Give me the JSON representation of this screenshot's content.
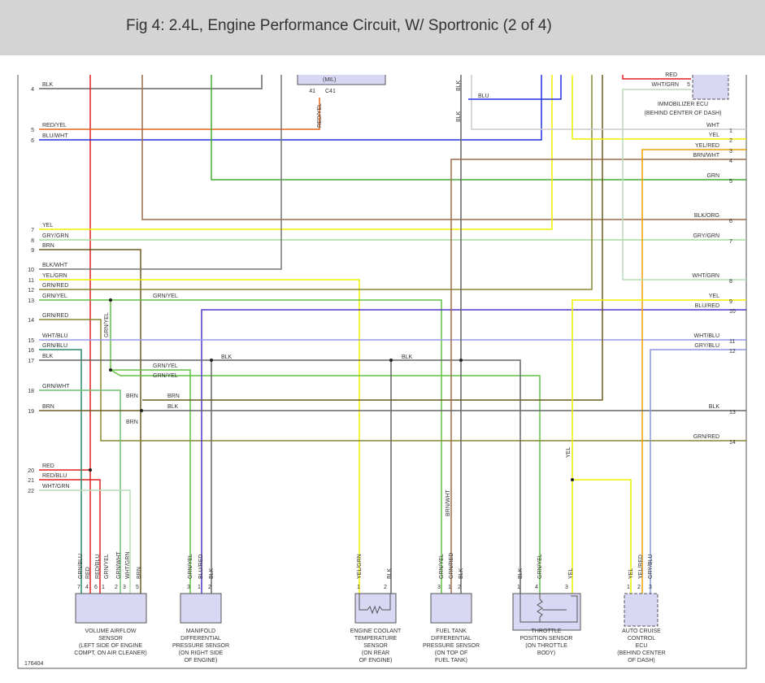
{
  "header": {
    "title": "Fig 4: 2.4L, Engine Performance Circuit, W/ Sportronic (2 of 4)"
  },
  "left_pins": [
    {
      "pin": "4",
      "label": "BLK"
    },
    {
      "pin": "5",
      "label": "RED/YEL"
    },
    {
      "pin": "6",
      "label": "BLU/WHT"
    },
    {
      "pin": "7",
      "label": "YEL"
    },
    {
      "pin": "8",
      "label": "GRY/GRN"
    },
    {
      "pin": "9",
      "label": "BRN"
    },
    {
      "pin": "10",
      "label": "BLK/WHT"
    },
    {
      "pin": "11",
      "label": "YEL/GRN"
    },
    {
      "pin": "12",
      "label": "GRN/RED"
    },
    {
      "pin": "13",
      "label": "GRN/YEL"
    },
    {
      "pin": "14",
      "label": "GRN/RED"
    },
    {
      "pin": "15",
      "label": "WHT/BLU"
    },
    {
      "pin": "16",
      "label": "GRN/BLU"
    },
    {
      "pin": "17",
      "label": "BLK"
    },
    {
      "pin": "18",
      "label": "GRN/WHT"
    },
    {
      "pin": "19",
      "label": "BRN"
    },
    {
      "pin": "20",
      "label": "RED"
    },
    {
      "pin": "21",
      "label": "RED/BLU"
    },
    {
      "pin": "22",
      "label": "WHT/GRN"
    }
  ],
  "right_pins": [
    {
      "pin": "1",
      "label": "WHT"
    },
    {
      "pin": "2",
      "label": "YEL"
    },
    {
      "pin": "3",
      "label": "YEL/RED"
    },
    {
      "pin": "4",
      "label": "BRN/WHT"
    },
    {
      "pin": "5",
      "label": "GRN"
    },
    {
      "pin": "6",
      "label": "BLK/ORG"
    },
    {
      "pin": "7",
      "label": "GRY/GRN"
    },
    {
      "pin": "8",
      "label": "WHT/GRN"
    },
    {
      "pin": "9",
      "label": "YEL"
    },
    {
      "pin": "10",
      "label": "BLU/RED"
    },
    {
      "pin": "11",
      "label": "WHT/BLU"
    },
    {
      "pin": "12",
      "label": "GRY/BLU"
    },
    {
      "pin": "13",
      "label": "BLK"
    },
    {
      "pin": "14",
      "label": "GRN/RED"
    }
  ],
  "top_labels": [
    "BLK",
    "BLU",
    "BLK",
    "(MIL)",
    "41",
    "C41",
    "RED/YEL",
    "RED",
    "WHT/GRN",
    "5",
    "IMMOBILIZER ECU",
    "(BEHIND CENTER OF DASH)"
  ],
  "wire_labels": [
    "GRN/YEL",
    "GRN/YEL",
    "BLK",
    "BLK",
    "GRN/YEL",
    "GRN/YEL",
    "BRN",
    "BRN",
    "BLK",
    "BRN",
    "YEL",
    "BRN/WHT"
  ],
  "components": [
    {
      "name": [
        "VOLUME AIRFLOW",
        "SENSOR",
        "(LEFT SIDE OF ENGINE",
        "COMPT, ON AIR CLEANER)"
      ],
      "pins": [
        "7",
        "4",
        "6",
        "1",
        "2",
        "3",
        "5"
      ],
      "wires": [
        "GRN/BLU",
        "RED",
        "RED/BLU",
        "GRN/YEL",
        "GRN/WHT",
        "WHT/GRN",
        "BRN"
      ]
    },
    {
      "name": [
        "MANIFOLD",
        "DIFFERENTIAL",
        "PRESSURE SENSOR",
        "(ON RIGHT SIDE",
        "OF ENGINE)"
      ],
      "pins": [
        "3",
        "1",
        "2"
      ],
      "wires": [
        "GRN/YEL",
        "BLU/RED",
        "BLK"
      ]
    },
    {
      "name": [
        "ENGINE COOLANT",
        "TEMPERATURE",
        "SENSOR",
        "(ON REAR",
        "OF ENGINE)"
      ],
      "pins": [
        "1",
        "2"
      ],
      "wires": [
        "YEL/GRN",
        "BLK"
      ]
    },
    {
      "name": [
        "FUEL TANK",
        "DIFFERENTIAL",
        "PRESSURE SENSOR",
        "(ON TOP OF",
        "FUEL TANK)"
      ],
      "pins": [
        "3",
        "1",
        "2"
      ],
      "wires": [
        "GRN/YEL",
        "GRN/RED",
        "BLK"
      ]
    },
    {
      "name": [
        "THROTTLE",
        "POSITION SENSOR",
        "(ON THROTTLE",
        "BODY)"
      ],
      "pins": [
        "1",
        "4",
        "3"
      ],
      "wires": [
        "BLK",
        "GRN/YEL",
        "YEL"
      ]
    },
    {
      "name": [
        "AUTO CRUISE",
        "CONTROL",
        "ECU",
        "(BEHIND CENTER",
        "OF DASH)"
      ],
      "pins": [
        "1",
        "2",
        "3"
      ],
      "wires": [
        "YEL",
        "YEL/RED",
        "GRY/BLU"
      ]
    }
  ],
  "footer": "176404"
}
